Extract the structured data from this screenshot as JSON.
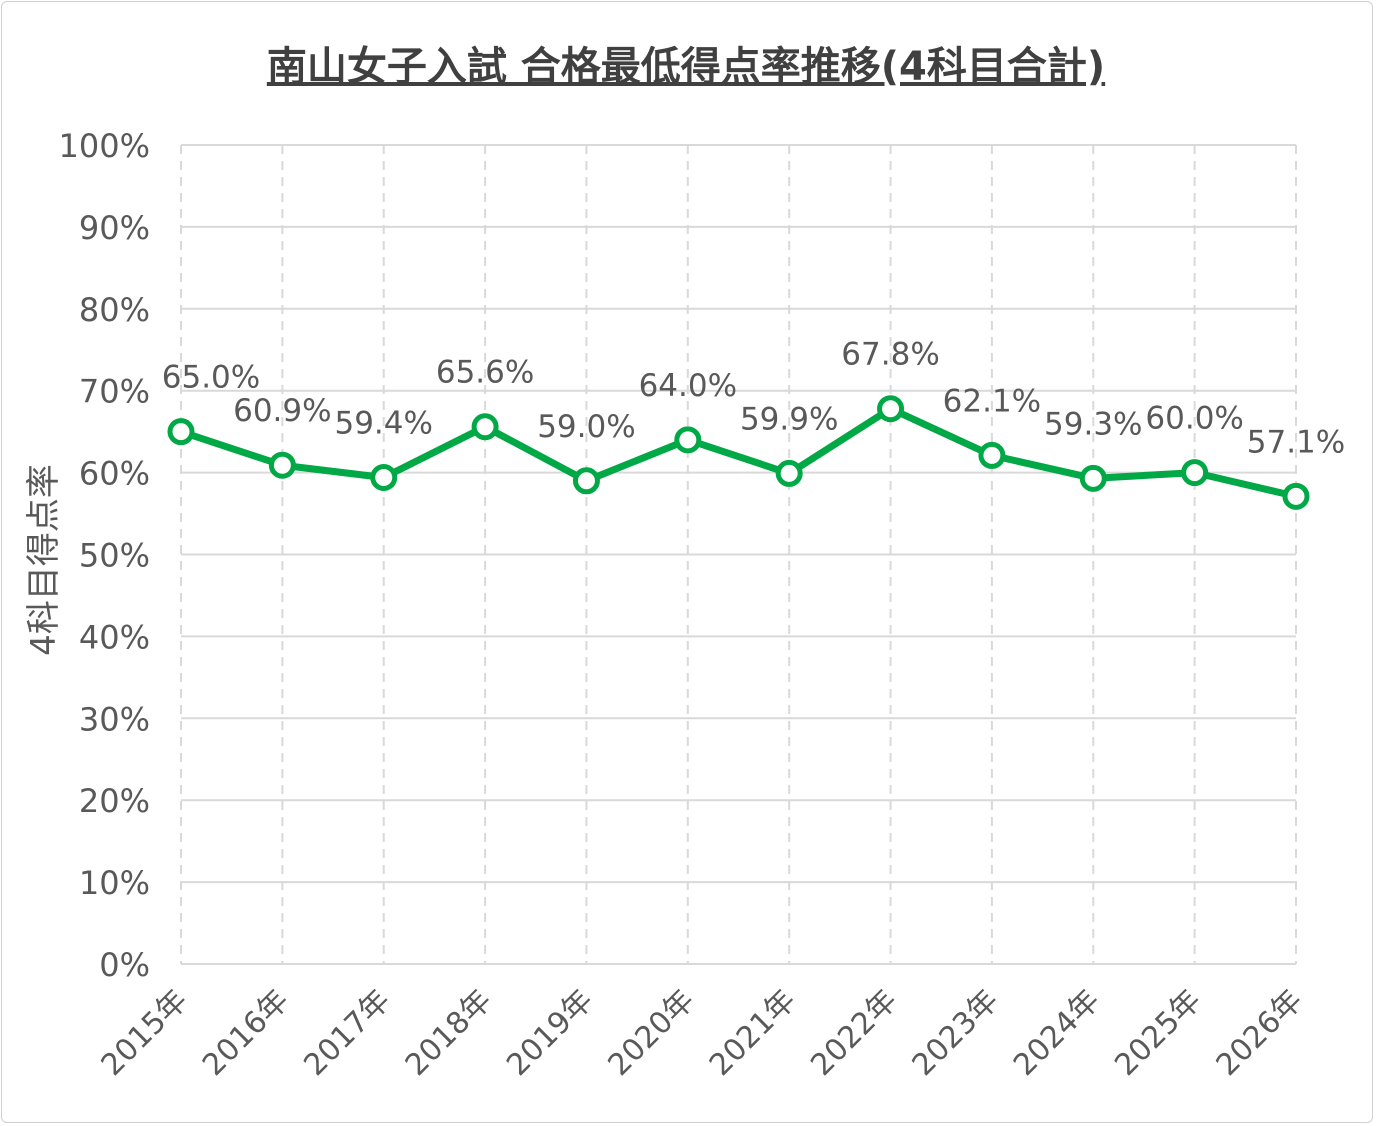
{
  "chart_data": {
    "type": "line",
    "title": "南山女子入試 合格最低得点率推移(4科目合計)",
    "xlabel": "",
    "ylabel": "4科目得点率",
    "categories": [
      "2015年",
      "2016年",
      "2017年",
      "2018年",
      "2019年",
      "2020年",
      "2021年",
      "2022年",
      "2023年",
      "2024年",
      "2025年",
      "2026年"
    ],
    "series": [
      {
        "name": "合格最低得点率",
        "values": [
          65.0,
          60.9,
          59.4,
          65.6,
          59.0,
          64.0,
          59.9,
          67.8,
          62.1,
          59.3,
          60.0,
          57.1
        ],
        "color": "#00A846"
      }
    ],
    "data_labels": [
      "65.0%",
      "60.9%",
      "59.4%",
      "65.6%",
      "59.0%",
      "64.0%",
      "59.9%",
      "67.8%",
      "62.1%",
      "59.3%",
      "60.0%",
      "57.1%"
    ],
    "ylim": [
      0,
      100
    ],
    "yticks": [
      "0%",
      "10%",
      "20%",
      "30%",
      "40%",
      "50%",
      "60%",
      "70%",
      "80%",
      "90%",
      "100%"
    ],
    "grid": {
      "horizontal": "solid",
      "vertical": "dashed"
    },
    "legend": "none"
  }
}
